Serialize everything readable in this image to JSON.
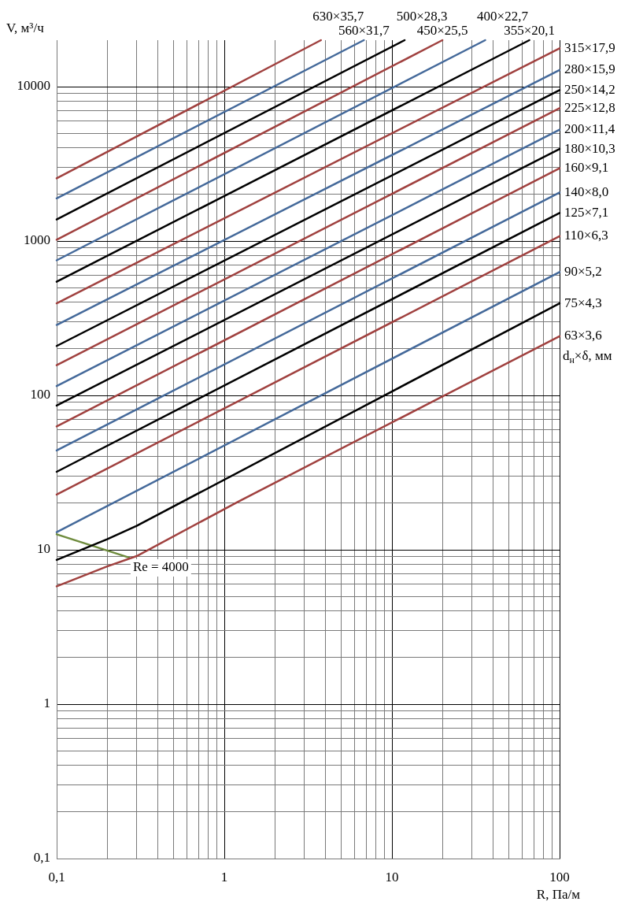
{
  "chart_data": {
    "type": "line",
    "xlabel": "R, Па/м",
    "ylabel": "V, м³/ч",
    "legend_title": "d$_{н}$×δ, мм",
    "log": "xy",
    "grid": true,
    "legend": false,
    "marker": "none",
    "line_style": "solid",
    "xlim": [
      0.1,
      100
    ],
    "ylim": [
      0.1,
      20000
    ],
    "xticks": [
      {
        "value": 0.1,
        "label": "0,1"
      },
      {
        "value": 0.2,
        "label": null
      },
      {
        "value": 0.3,
        "label": null
      },
      {
        "value": 0.4,
        "label": null
      },
      {
        "value": 0.5,
        "label": null
      },
      {
        "value": 0.6,
        "label": null
      },
      {
        "value": 0.7,
        "label": null
      },
      {
        "value": 0.8,
        "label": null
      },
      {
        "value": 0.9,
        "label": null
      },
      1,
      {
        "value": 2,
        "label": null
      },
      {
        "value": 3,
        "label": null
      },
      {
        "value": 4,
        "label": null
      },
      {
        "value": 5,
        "label": null
      },
      {
        "value": 6,
        "label": null
      },
      {
        "value": 7,
        "label": null
      },
      {
        "value": 8,
        "label": null
      },
      {
        "value": 9,
        "label": null
      },
      10,
      {
        "value": 20,
        "label": null
      },
      {
        "value": 30,
        "label": null
      },
      {
        "value": 40,
        "label": null
      },
      {
        "value": 50,
        "label": null
      },
      {
        "value": 60,
        "label": null
      },
      {
        "value": 70,
        "label": null
      },
      {
        "value": 80,
        "label": null
      },
      {
        "value": 90,
        "label": null
      },
      100
    ],
    "yticks": [
      {
        "value": 0.1,
        "label": "0,1"
      },
      {
        "value": 0.2,
        "label": null
      },
      {
        "value": 0.3,
        "label": null
      },
      {
        "value": 0.4,
        "label": null
      },
      {
        "value": 0.5,
        "label": null
      },
      {
        "value": 0.6,
        "label": null
      },
      {
        "value": 0.7,
        "label": null
      },
      {
        "value": 0.8,
        "label": null
      },
      {
        "value": 0.9,
        "label": null
      },
      1,
      {
        "value": 2,
        "label": null
      },
      {
        "value": 3,
        "label": null
      },
      {
        "value": 4,
        "label": null
      },
      {
        "value": 5,
        "label": null
      },
      {
        "value": 6,
        "label": null
      },
      {
        "value": 7,
        "label": null
      },
      {
        "value": 8,
        "label": null
      },
      {
        "value": 9,
        "label": null
      },
      10,
      {
        "value": 20,
        "label": null
      },
      {
        "value": 30,
        "label": null
      },
      {
        "value": 40,
        "label": null
      },
      {
        "value": 50,
        "label": null
      },
      {
        "value": 60,
        "label": null
      },
      {
        "value": 70,
        "label": null
      },
      {
        "value": 80,
        "label": null
      },
      {
        "value": 90,
        "label": null
      },
      100,
      {
        "value": 200,
        "label": null
      },
      {
        "value": 300,
        "label": null
      },
      {
        "value": 400,
        "label": null
      },
      {
        "value": 500,
        "label": null
      },
      {
        "value": 600,
        "label": null
      },
      {
        "value": 700,
        "label": null
      },
      {
        "value": 800,
        "label": null
      },
      {
        "value": 900,
        "label": null
      },
      1000,
      {
        "value": 2000,
        "label": null
      },
      {
        "value": 3000,
        "label": null
      },
      {
        "value": 4000,
        "label": null
      },
      {
        "value": 5000,
        "label": null
      },
      {
        "value": 6000,
        "label": null
      },
      {
        "value": 7000,
        "label": null
      },
      {
        "value": 8000,
        "label": null
      },
      {
        "value": 9000,
        "label": null
      },
      10000
    ],
    "series": [
      {
        "name": "63×3,6",
        "color": "#a0413f",
        "x": [
          0.1,
          0.2,
          0.3,
          1.2,
          100
        ],
        "values": [
          5.8,
          7.8,
          9.1,
          20.4,
          242
        ]
      },
      {
        "name": "75×4,3",
        "color": "#000000",
        "x": [
          0.1,
          0.2,
          0.3,
          100
        ],
        "values": [
          8.6,
          11.7,
          14.3,
          395
        ]
      },
      {
        "name": "90×5,2",
        "color": "#44699a",
        "x": [
          0.1,
          100
        ],
        "values": [
          13,
          630
        ]
      },
      {
        "name": "110×6,3",
        "color": "#a0413f",
        "x": [
          0.1,
          100
        ],
        "values": [
          22.8,
          1075
        ]
      },
      {
        "name": "125×7,1",
        "color": "#000000",
        "x": [
          0.1,
          100
        ],
        "values": [
          32,
          1520
        ]
      },
      {
        "name": "140×8,0",
        "color": "#44699a",
        "x": [
          0.1,
          100
        ],
        "values": [
          44,
          2060
        ]
      },
      {
        "name": "160×9,1",
        "color": "#a0413f",
        "x": [
          0.1,
          100
        ],
        "values": [
          63,
          2960
        ]
      },
      {
        "name": "180×10,3",
        "color": "#000000",
        "x": [
          0.1,
          100
        ],
        "values": [
          86,
          3950
        ]
      },
      {
        "name": "200×11,4",
        "color": "#44699a",
        "x": [
          0.1,
          100
        ],
        "values": [
          115,
          5260
        ]
      },
      {
        "name": "225×12,8",
        "color": "#a0413f",
        "x": [
          0.1,
          100
        ],
        "values": [
          157,
          7250
        ]
      },
      {
        "name": "250×14,2",
        "color": "#000000",
        "x": [
          0.1,
          100
        ],
        "values": [
          209,
          9500
        ]
      },
      {
        "name": "280×15,9",
        "color": "#44699a",
        "x": [
          0.1,
          100
        ],
        "values": [
          286,
          12800
        ]
      },
      {
        "name": "315×17,9",
        "color": "#a0413f",
        "x": [
          0.1,
          100
        ],
        "values": [
          395,
          17700
        ]
      },
      {
        "name": "355×20,1",
        "color": "#000000",
        "x": [
          0.1,
          66
        ],
        "values": [
          545,
          20000
        ]
      },
      {
        "name": "400×22,7",
        "color": "#44699a",
        "x": [
          0.1,
          36
        ],
        "values": [
          750,
          20000
        ]
      },
      {
        "name": "450×25,5",
        "color": "#a0413f",
        "x": [
          0.1,
          20
        ],
        "values": [
          1020,
          20000
        ]
      },
      {
        "name": "500×28,3",
        "color": "#000000",
        "x": [
          0.1,
          11.9
        ],
        "values": [
          1380,
          20000
        ]
      },
      {
        "name": "560×31,7",
        "color": "#44699a",
        "x": [
          0.1,
          6.8
        ],
        "values": [
          1890,
          20000
        ]
      },
      {
        "name": "630×35,7",
        "color": "#a0413f",
        "x": [
          0.1,
          3.77
        ],
        "values": [
          2550,
          20000
        ]
      },
      {
        "name": "Re = 4000",
        "color": "#6e8b3d",
        "x": [
          0.1,
          0.27
        ],
        "values": [
          12.6,
          8.9
        ]
      }
    ]
  }
}
